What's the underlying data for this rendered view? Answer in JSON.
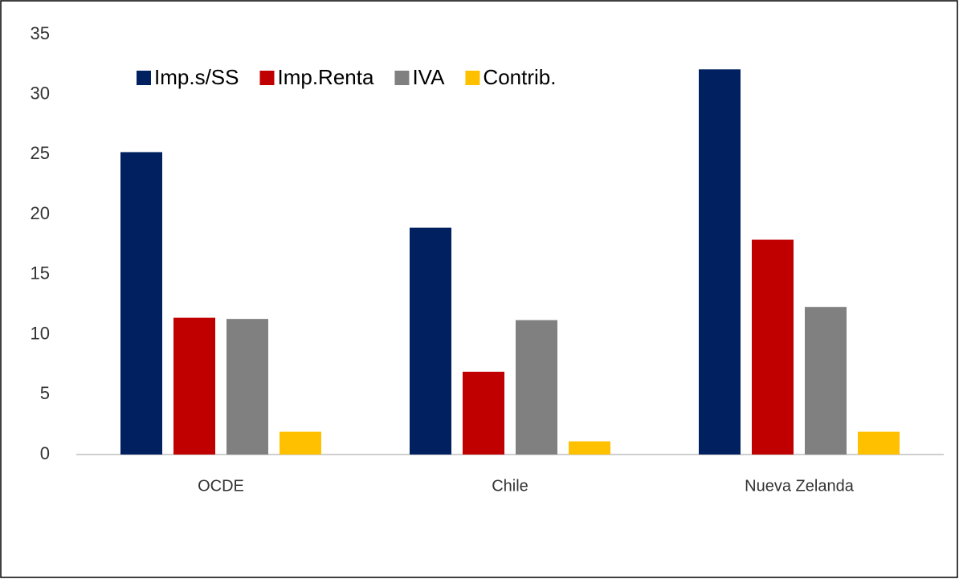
{
  "chart_data": {
    "type": "bar",
    "categories": [
      "OCDE",
      "Chile",
      "Nueva Zelanda"
    ],
    "series": [
      {
        "name": "Imp.s/SS",
        "color": "#002060",
        "values": [
          25.2,
          18.9,
          32.1
        ]
      },
      {
        "name": "Imp.Renta",
        "color": "#c00000",
        "values": [
          11.4,
          6.9,
          17.9
        ]
      },
      {
        "name": "IVA",
        "color": "#808080",
        "values": [
          11.3,
          11.2,
          12.3
        ]
      },
      {
        "name": "Contrib.",
        "color": "#ffc000",
        "values": [
          1.9,
          1.1,
          1.9
        ]
      }
    ],
    "ylim": [
      0,
      35
    ],
    "yticks": [
      0,
      5,
      10,
      15,
      20,
      25,
      30,
      35
    ],
    "grid": false,
    "legend": "top"
  }
}
